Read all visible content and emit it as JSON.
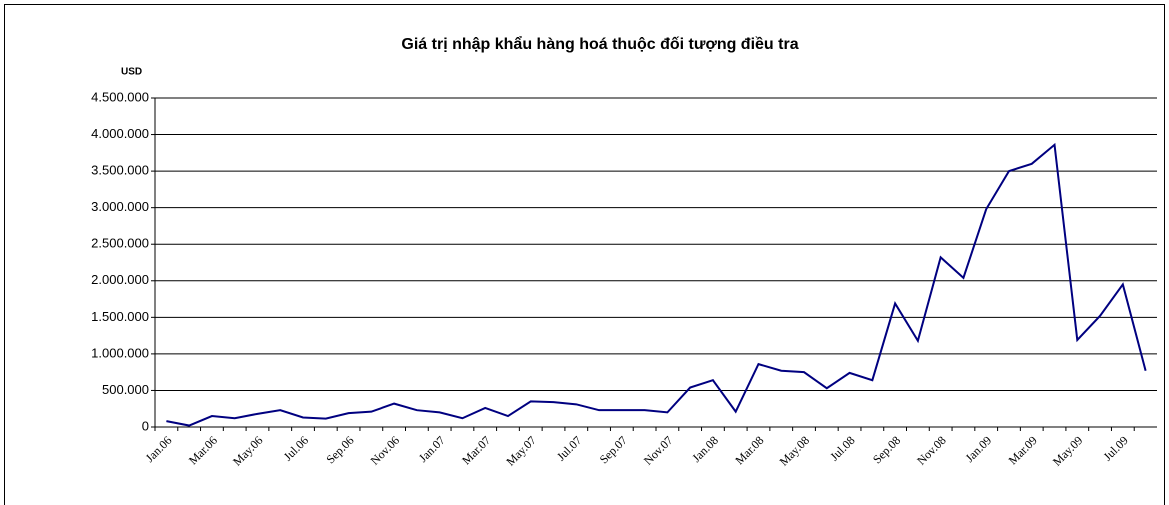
{
  "chart_data": {
    "type": "line",
    "title": "Giá trị nhập khẩu hàng hoá thuộc đối tượng điều tra",
    "y_label": "USD",
    "categories": [
      "Jan.06",
      null,
      "Mar.06",
      null,
      "May.06",
      null,
      "Jul.06",
      null,
      "Sep.06",
      null,
      "Nov.06",
      null,
      "Jan.07",
      null,
      "Mar.07",
      null,
      "May.07",
      null,
      "Jul.07",
      null,
      "Sep.07",
      null,
      "Nov.07",
      null,
      "Jan.08",
      null,
      "Mar.08",
      null,
      "May.08",
      null,
      "Jul.08",
      null,
      "Sep.08",
      null,
      "Nov.08",
      null,
      "Jan.09",
      null,
      "Mar.09",
      null,
      "May.09",
      null,
      "Jul.09",
      null
    ],
    "series": [
      {
        "color": "#000080",
        "values": [
          80000,
          20000,
          150000,
          120000,
          180000,
          230000,
          130000,
          115000,
          190000,
          210000,
          320000,
          230000,
          200000,
          120000,
          260000,
          150000,
          350000,
          340000,
          310000,
          230000,
          230000,
          230000,
          200000,
          540000,
          640000,
          210000,
          860000,
          770000,
          750000,
          530000,
          740000,
          640000,
          1690000,
          1180000,
          2320000,
          2040000,
          2980000,
          3500000,
          3600000,
          3860000,
          1190000,
          1520000,
          1950000,
          770000
        ]
      }
    ],
    "ylim": [
      0,
      4500000
    ],
    "yticks": [
      0,
      {
        "value": 500000,
        "label": "500.000"
      },
      {
        "value": 1000000,
        "label": "1.000.000"
      },
      {
        "value": 1500000,
        "label": "1.500.000"
      },
      {
        "value": 2000000,
        "label": "2.000.000"
      },
      {
        "value": 2500000,
        "label": "2.500.000"
      },
      {
        "value": 3000000,
        "label": "3.000.000"
      },
      {
        "value": 3500000,
        "label": "3.500.000"
      },
      {
        "value": 4000000,
        "label": "4.000.000"
      },
      {
        "value": 4500000,
        "label": "4.500.000"
      }
    ],
    "grid": true
  }
}
